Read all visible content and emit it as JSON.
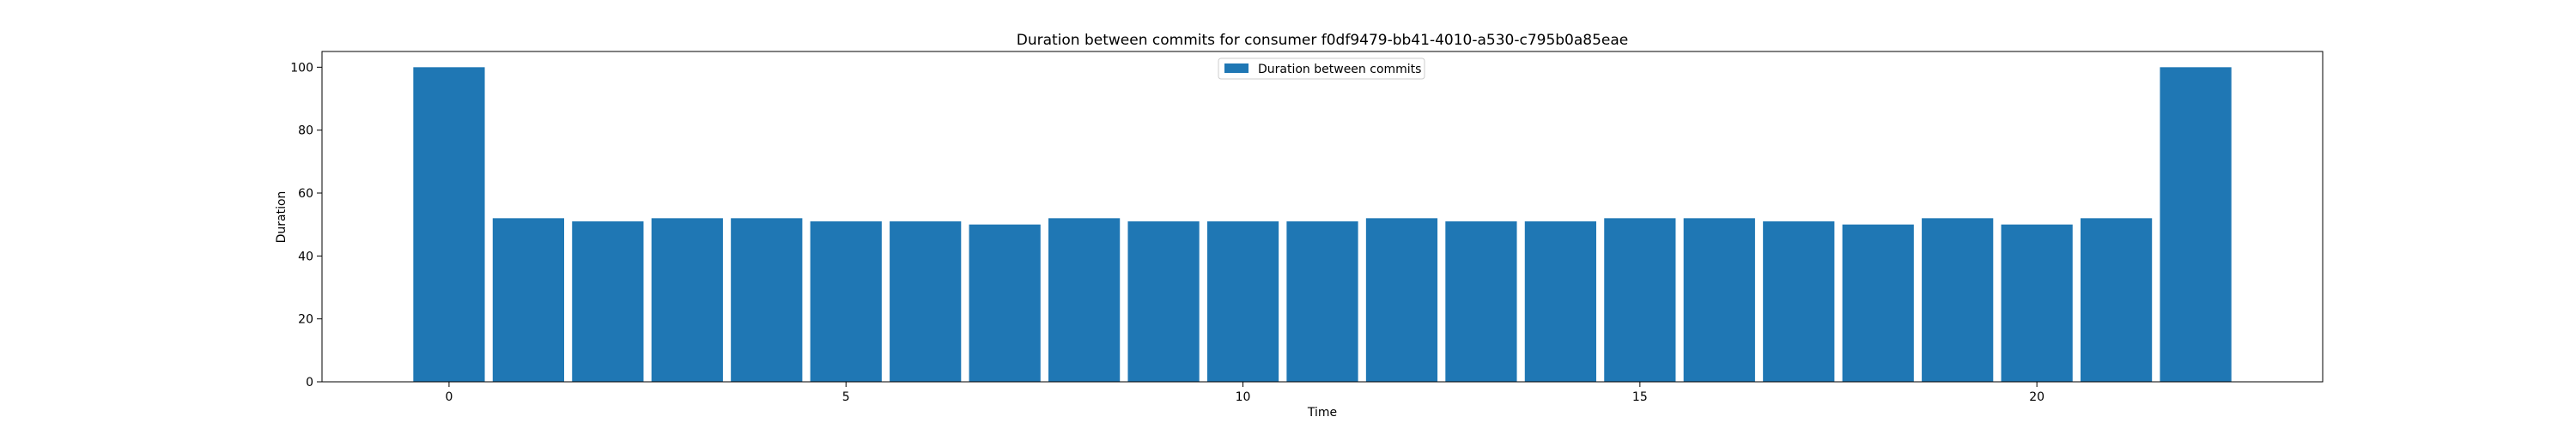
{
  "chart_data": {
    "type": "bar",
    "title": "Duration between commits for consumer f0df9479-bb41-4010-a530-c795b0a85eae",
    "xlabel": "Time",
    "ylabel": "Duration",
    "x": [
      0,
      1,
      2,
      3,
      4,
      5,
      6,
      7,
      8,
      9,
      10,
      11,
      12,
      13,
      14,
      15,
      16,
      17,
      18,
      19,
      20,
      21,
      22
    ],
    "series": [
      {
        "name": "Duration between commits",
        "color": "#1f77b4",
        "values": [
          100,
          52,
          51,
          52,
          52,
          51,
          51,
          50,
          52,
          51,
          51,
          51,
          52,
          51,
          51,
          52,
          52,
          51,
          50,
          52,
          50,
          52,
          100
        ]
      }
    ],
    "xlim": [
      -1.6,
      23.6
    ],
    "ylim": [
      0,
      105
    ],
    "xticks": [
      0,
      5,
      10,
      15,
      20
    ],
    "yticks": [
      0,
      20,
      40,
      60,
      80,
      100
    ],
    "grid": false,
    "legend_position": "upper center"
  }
}
